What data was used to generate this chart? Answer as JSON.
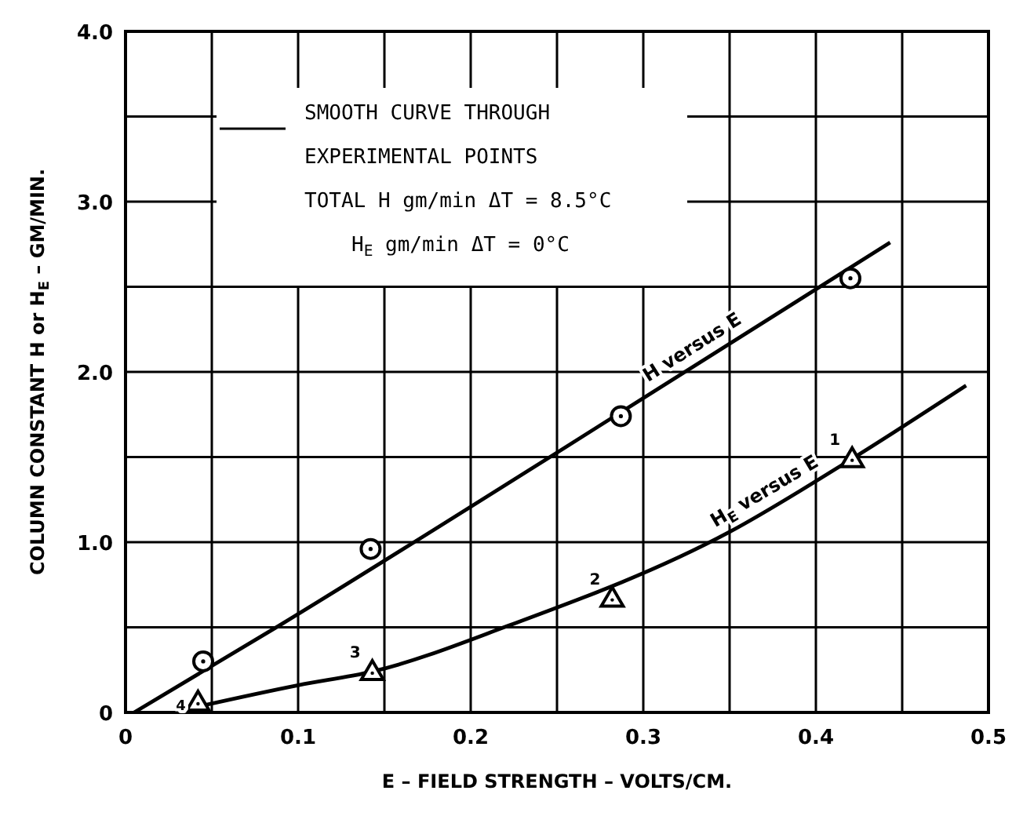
{
  "chart_data": {
    "type": "line",
    "xlabel": "E – FIELD STRENGTH – VOLTS/CM.",
    "ylabel": "COLUMN CONSTANT H or H$_{E}$ – GM/MIN.",
    "xlim": [
      0,
      0.5
    ],
    "xticks": [
      0,
      {
        "value": 0.05,
        "label": null
      },
      {
        "value": 0.1,
        "label": "0.1"
      },
      {
        "value": 0.15,
        "label": null
      },
      {
        "value": 0.2,
        "label": "0.2"
      },
      {
        "value": 0.25,
        "label": null
      },
      {
        "value": 0.3,
        "label": "0.3"
      },
      {
        "value": 0.35,
        "label": null
      },
      {
        "value": 0.4,
        "label": "0.4"
      },
      {
        "value": 0.45,
        "label": null
      },
      {
        "value": 0.5,
        "label": "0.5"
      }
    ],
    "ylim": [
      0,
      4.0
    ],
    "yticks": [
      0,
      {
        "value": 0.5,
        "label": null
      },
      {
        "value": 1.0,
        "label": "1.0"
      },
      {
        "value": 1.5,
        "label": null
      },
      {
        "value": 2.0,
        "label": "2.0"
      },
      {
        "value": 2.5,
        "label": null
      },
      {
        "value": 3.0,
        "label": "3.0"
      },
      {
        "value": 3.5,
        "label": null
      },
      {
        "value": 4.0,
        "label": "4.0"
      }
    ],
    "grid": true,
    "series": [
      {
        "type": "line",
        "name": "H versus E",
        "color": "#000000",
        "x": [
          0.005,
          0.089,
          0.249,
          0.443
        ],
        "values": [
          0,
          0.51,
          1.52,
          2.76
        ]
      },
      {
        "type": "line",
        "name": "H$_{E}$ versus E",
        "color": "#000000",
        "x": [
          0.04,
          0.1,
          0.143,
          0.222,
          0.35,
          0.421,
          0.487
        ],
        "values": [
          0.03,
          0.16,
          0.24,
          0.51,
          1.06,
          1.49,
          1.92
        ]
      },
      {
        "type": "scatter",
        "marker": "circle",
        "color": "#000000",
        "x": [
          0.045,
          0.142,
          0.287,
          0.42
        ],
        "values": [
          0.3,
          0.96,
          1.74,
          2.55
        ]
      },
      {
        "type": "scatter",
        "marker": "triangle",
        "color": "#000000",
        "x": [
          0.042,
          0.143,
          0.282,
          0.421
        ],
        "values": [
          0.06,
          0.24,
          0.67,
          1.49
        ]
      }
    ],
    "annotations": [
      "SMOOTH CURVE THROUGH",
      "EXPERIMENTAL POINTS",
      "TOTAL H gm/min ΔT = 8.5°C",
      "H$_{E}$   gm/min ΔT =   0°C",
      {
        "text": "1",
        "x": 0.421,
        "y": 1.49
      },
      {
        "text": "2",
        "x": 0.282,
        "y": 0.67
      },
      {
        "text": "3",
        "x": 0.143,
        "y": 0.24
      },
      {
        "text": "4",
        "x": 0.042,
        "y": 0.06
      }
    ]
  }
}
